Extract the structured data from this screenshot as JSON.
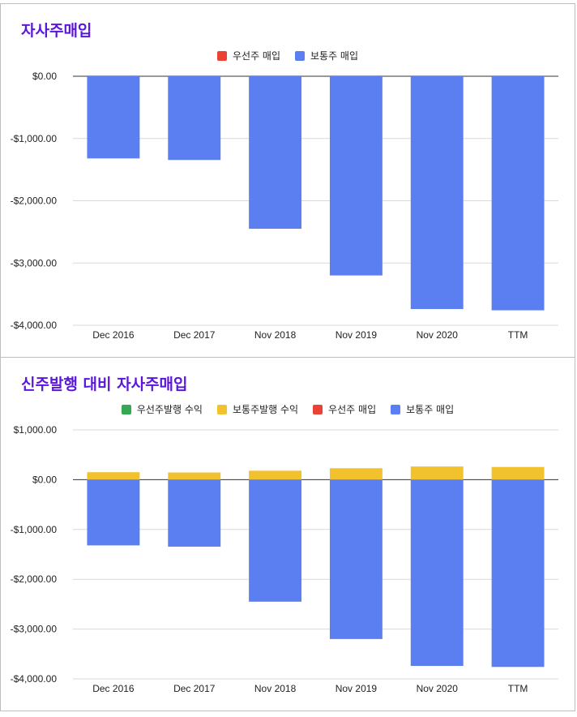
{
  "colors": {
    "title": "#5b17d9",
    "preferred_issuance": "#34a853",
    "common_issuance": "#f2c12e",
    "preferred_buyback": "#ea4335",
    "common_buyback": "#5b7ff1"
  },
  "chart_data": [
    {
      "type": "bar",
      "title": "자사주매입",
      "categories": [
        "Dec 2016",
        "Dec 2017",
        "Nov 2018",
        "Nov 2019",
        "Nov 2020",
        "TTM"
      ],
      "series": [
        {
          "name": "우선주 매입",
          "color_key": "preferred_buyback",
          "values": [
            0,
            0,
            0,
            0,
            0,
            0
          ]
        },
        {
          "name": "보통주 매입",
          "color_key": "common_buyback",
          "values": [
            -1320,
            -1345,
            -2450,
            -3200,
            -3740,
            -3760
          ]
        }
      ],
      "ylim": [
        -4000,
        0
      ],
      "yticks": [
        0,
        -1000,
        -2000,
        -3000,
        -4000
      ],
      "ytick_labels": [
        "$0.00",
        "-$1,000.00",
        "-$2,000.00",
        "-$3,000.00",
        "-$4,000.00"
      ],
      "grid": true,
      "legend": "top"
    },
    {
      "type": "bar",
      "stacked": true,
      "title": "신주발행 대비 자사주매입",
      "categories": [
        "Dec 2016",
        "Dec 2017",
        "Nov 2018",
        "Nov 2019",
        "Nov 2020",
        "TTM"
      ],
      "series": [
        {
          "name": "우선주발행 수익",
          "color_key": "preferred_issuance",
          "values": [
            0,
            0,
            0,
            0,
            0,
            0
          ]
        },
        {
          "name": "보통주발행 수익",
          "color_key": "common_issuance",
          "values": [
            150,
            145,
            180,
            230,
            265,
            255
          ]
        },
        {
          "name": "우선주 매입",
          "color_key": "preferred_buyback",
          "values": [
            0,
            0,
            0,
            0,
            0,
            0
          ]
        },
        {
          "name": "보통주 매입",
          "color_key": "common_buyback",
          "values": [
            -1320,
            -1345,
            -2450,
            -3200,
            -3740,
            -3760
          ]
        }
      ],
      "ylim": [
        -4000,
        1000
      ],
      "yticks": [
        1000,
        0,
        -1000,
        -2000,
        -3000,
        -4000
      ],
      "ytick_labels": [
        "$1,000.00",
        "$0.00",
        "-$1,000.00",
        "-$2,000.00",
        "-$3,000.00",
        "-$4,000.00"
      ],
      "grid": true,
      "legend": "top"
    }
  ]
}
